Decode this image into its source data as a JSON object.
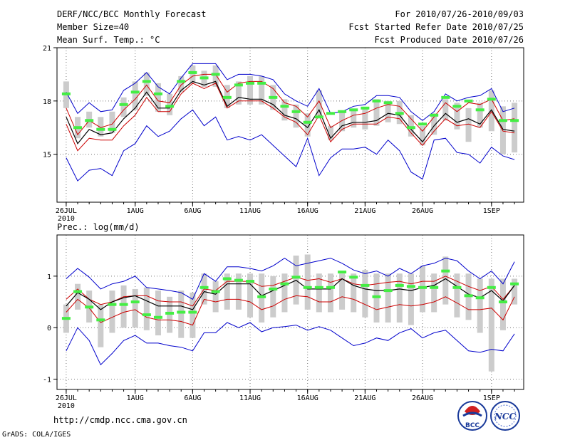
{
  "header": {
    "title": "DERF/NCC/BCC Monthly Forecast",
    "member_size": "Member Size=40",
    "variable": "Mean Surf. Temp.: °C",
    "period": "For 2010/07/26-2010/09/03",
    "started": "Fcst Started Refer Date 2010/07/25",
    "produced": "Fcst Produced Date 2010/07/26"
  },
  "footer": {
    "url": "http://cmdp.ncc.cma.gov.cn",
    "credit": "GrADS: COLA/IGES",
    "logo_bcc": "BCC",
    "logo_ncc": "NCC"
  },
  "chart_data": [
    {
      "type": "line",
      "title": "Mean Surf. Temp.: °C",
      "xlabel": "",
      "ylabel": "",
      "x_tick_labels": [
        "26JUL",
        "1AUG",
        "6AUG",
        "11AUG",
        "16AUG",
        "21AUG",
        "26AUG",
        "1SEP"
      ],
      "x_tick_days": [
        1,
        7,
        12,
        17,
        22,
        27,
        32,
        38
      ],
      "x_year_label": "2010",
      "xlim": [
        0.2,
        40.8
      ],
      "ylim": [
        12.3,
        21
      ],
      "y_ticks": [
        15,
        18,
        21
      ],
      "grid": true,
      "days": [
        1,
        2,
        3,
        4,
        5,
        6,
        7,
        8,
        9,
        10,
        11,
        12,
        13,
        14,
        15,
        16,
        17,
        18,
        19,
        20,
        21,
        22,
        23,
        24,
        25,
        26,
        27,
        28,
        29,
        30,
        31,
        32,
        33,
        34,
        35,
        36,
        37,
        38,
        39,
        40
      ],
      "series": [
        {
          "name": "max",
          "color": "#0000cc",
          "values": [
            18.5,
            17.3,
            17.9,
            17.4,
            17.5,
            18.6,
            19.0,
            19.6,
            18.8,
            18.4,
            19.3,
            20.1,
            20.1,
            20.1,
            19.2,
            19.5,
            19.5,
            19.4,
            19.2,
            18.4,
            18.0,
            17.7,
            18.7,
            17.3,
            17.4,
            17.7,
            17.8,
            18.3,
            18.3,
            18.2,
            17.4,
            16.9,
            17.4,
            18.4,
            18.0,
            18.2,
            18.3,
            18.7,
            17.4,
            17.6
          ]
        },
        {
          "name": "upper",
          "color": "#cc0000",
          "values": [
            17.6,
            16.1,
            16.9,
            16.5,
            16.7,
            17.5,
            18.1,
            18.9,
            18.0,
            17.9,
            18.9,
            19.4,
            19.5,
            19.5,
            18.5,
            19.0,
            19.1,
            19.1,
            18.7,
            17.9,
            17.7,
            17.1,
            18.0,
            16.5,
            16.9,
            17.2,
            17.3,
            17.6,
            17.8,
            17.7,
            17.0,
            16.3,
            17.1,
            17.9,
            17.4,
            17.9,
            17.8,
            18.1,
            16.9,
            17.0
          ]
        },
        {
          "name": "mean",
          "color": "#000000",
          "values": [
            17.1,
            15.6,
            16.4,
            16.1,
            16.2,
            17.0,
            17.6,
            18.5,
            17.6,
            17.6,
            18.6,
            19.1,
            18.9,
            19.1,
            17.7,
            18.2,
            18.1,
            18.1,
            17.8,
            17.2,
            17.0,
            16.5,
            17.5,
            15.9,
            16.6,
            16.8,
            16.8,
            16.9,
            17.3,
            17.2,
            16.4,
            15.7,
            16.6,
            17.3,
            16.8,
            17.0,
            16.7,
            17.5,
            16.4,
            16.3
          ]
        },
        {
          "name": "lower",
          "color": "#cc0000",
          "values": [
            16.7,
            15.2,
            15.9,
            15.8,
            15.8,
            16.6,
            17.2,
            18.2,
            17.4,
            17.4,
            18.4,
            19.0,
            18.7,
            19.0,
            17.6,
            18.0,
            18.0,
            18.0,
            17.6,
            17.1,
            16.8,
            16.1,
            17.2,
            15.7,
            16.4,
            16.7,
            16.7,
            16.7,
            17.1,
            17.0,
            16.2,
            15.5,
            16.3,
            17.0,
            16.6,
            16.7,
            16.5,
            17.4,
            16.3,
            16.2
          ]
        },
        {
          "name": "min",
          "color": "#0000cc",
          "values": [
            14.8,
            13.5,
            14.1,
            14.2,
            13.8,
            15.2,
            15.6,
            16.6,
            16.0,
            16.3,
            17.0,
            17.5,
            16.6,
            17.1,
            15.8,
            16.0,
            15.8,
            16.1,
            15.5,
            14.9,
            14.3,
            15.9,
            13.8,
            14.8,
            15.3,
            15.3,
            15.4,
            15.0,
            15.8,
            15.2,
            14.0,
            13.6,
            15.8,
            15.9,
            15.1,
            15.0,
            14.5,
            15.4,
            14.9,
            14.7
          ]
        }
      ],
      "spread_bars": {
        "color": "#cccccc",
        "low": [
          17.6,
          15.9,
          16.5,
          16.0,
          16.2,
          17.1,
          17.5,
          18.3,
          17.4,
          17.2,
          18.5,
          19.0,
          18.8,
          18.8,
          17.6,
          17.8,
          17.8,
          17.8,
          17.5,
          16.9,
          16.5,
          16.0,
          17.2,
          15.8,
          16.3,
          16.5,
          16.4,
          16.6,
          16.8,
          16.7,
          16.0,
          15.5,
          16.1,
          16.9,
          16.4,
          15.7,
          16.5,
          16.3,
          15.0,
          15.1
        ],
        "high": [
          19.1,
          17.1,
          17.4,
          17.1,
          17.4,
          18.2,
          19.1,
          19.6,
          19.0,
          18.4,
          19.4,
          20.0,
          19.7,
          20.0,
          18.9,
          19.1,
          19.4,
          19.4,
          18.9,
          18.1,
          17.8,
          17.3,
          18.6,
          16.6,
          17.4,
          17.5,
          17.6,
          18.1,
          18.0,
          18.0,
          17.2,
          16.6,
          17.3,
          18.1,
          17.9,
          17.6,
          17.9,
          18.6,
          17.7,
          17.9
        ]
      },
      "observed": {
        "color": "#44ee44",
        "values": [
          18.4,
          16.5,
          16.9,
          16.4,
          16.4,
          17.8,
          18.5,
          19.1,
          18.4,
          17.7,
          19.1,
          19.6,
          19.3,
          19.5,
          18.2,
          18.9,
          19.0,
          19.0,
          18.2,
          17.7,
          17.4,
          16.8,
          17.1,
          17.3,
          17.4,
          17.5,
          17.6,
          18.0,
          17.9,
          17.3,
          16.5,
          16.7,
          17.2,
          18.2,
          17.7,
          18.0,
          17.5,
          18.1,
          16.9,
          16.9
        ]
      }
    },
    {
      "type": "line",
      "title": "Prec.: log(mm/d)",
      "xlabel": "",
      "ylabel": "",
      "x_tick_labels": [
        "26JUL",
        "1AUG",
        "6AUG",
        "11AUG",
        "16AUG",
        "21AUG",
        "26AUG",
        "1SEP"
      ],
      "x_tick_days": [
        1,
        7,
        12,
        17,
        22,
        27,
        32,
        38
      ],
      "x_year_label": "2010",
      "xlim": [
        0.2,
        40.8
      ],
      "ylim": [
        -1.2,
        1.8
      ],
      "y_ticks": [
        -1,
        0,
        1
      ],
      "grid": true,
      "days": [
        1,
        2,
        3,
        4,
        5,
        6,
        7,
        8,
        9,
        10,
        11,
        12,
        13,
        14,
        15,
        16,
        17,
        18,
        19,
        20,
        21,
        22,
        23,
        24,
        25,
        26,
        27,
        28,
        29,
        30,
        31,
        32,
        33,
        34,
        35,
        36,
        37,
        38,
        39,
        40
      ],
      "series": [
        {
          "name": "max",
          "color": "#0000cc",
          "values": [
            0.95,
            1.15,
            0.98,
            0.75,
            0.85,
            0.9,
            1.0,
            0.78,
            0.75,
            0.72,
            0.68,
            0.55,
            1.05,
            0.9,
            1.18,
            1.18,
            1.15,
            1.1,
            1.2,
            1.35,
            1.2,
            1.25,
            1.3,
            1.35,
            1.25,
            1.12,
            1.05,
            1.1,
            1.0,
            1.15,
            1.05,
            1.2,
            1.25,
            1.35,
            1.3,
            1.1,
            0.95,
            1.1,
            0.85,
            1.28
          ]
        },
        {
          "name": "upper",
          "color": "#cc0000",
          "values": [
            0.55,
            0.75,
            0.55,
            0.45,
            0.5,
            0.6,
            0.62,
            0.62,
            0.52,
            0.5,
            0.5,
            0.42,
            0.75,
            0.72,
            0.9,
            0.9,
            0.9,
            0.8,
            0.82,
            0.9,
            0.98,
            0.92,
            0.95,
            0.88,
            0.95,
            0.85,
            0.82,
            0.85,
            0.88,
            0.9,
            0.85,
            0.9,
            0.9,
            1.0,
            0.9,
            0.8,
            0.72,
            0.8,
            0.55,
            0.82
          ]
        },
        {
          "name": "mean",
          "color": "#000000",
          "values": [
            0.42,
            0.68,
            0.55,
            0.35,
            0.5,
            0.58,
            0.62,
            0.52,
            0.42,
            0.42,
            0.42,
            0.35,
            0.7,
            0.65,
            0.85,
            0.85,
            0.85,
            0.62,
            0.72,
            0.82,
            0.92,
            0.75,
            0.75,
            0.75,
            0.95,
            0.82,
            0.75,
            0.72,
            0.72,
            0.75,
            0.72,
            0.78,
            0.82,
            0.95,
            0.8,
            0.65,
            0.58,
            0.72,
            0.52,
            0.82
          ]
        },
        {
          "name": "lower",
          "color": "#cc0000",
          "values": [
            0.3,
            0.55,
            0.38,
            0.1,
            0.2,
            0.3,
            0.35,
            0.2,
            0.15,
            0.15,
            0.12,
            0.05,
            0.55,
            0.5,
            0.55,
            0.55,
            0.5,
            0.35,
            0.42,
            0.55,
            0.62,
            0.6,
            0.5,
            0.5,
            0.6,
            0.55,
            0.45,
            0.35,
            0.4,
            0.45,
            0.42,
            0.45,
            0.5,
            0.6,
            0.48,
            0.35,
            0.35,
            0.38,
            0.15,
            0.6
          ]
        },
        {
          "name": "min",
          "color": "#0000cc",
          "values": [
            -0.45,
            0.0,
            -0.25,
            -0.72,
            -0.5,
            -0.25,
            -0.15,
            -0.3,
            -0.3,
            -0.35,
            -0.38,
            -0.45,
            -0.1,
            -0.1,
            0.1,
            0.0,
            0.1,
            -0.08,
            0.0,
            0.02,
            0.05,
            -0.05,
            0.02,
            -0.05,
            -0.2,
            -0.35,
            -0.3,
            -0.2,
            -0.25,
            -0.1,
            -0.02,
            -0.2,
            -0.1,
            -0.05,
            -0.25,
            -0.45,
            -0.48,
            -0.42,
            -0.45,
            -0.12
          ]
        }
      ],
      "spread_bars": {
        "color": "#cccccc",
        "low": [
          -0.1,
          0.35,
          0.1,
          -0.38,
          -0.1,
          0.0,
          0.0,
          -0.05,
          -0.15,
          -0.1,
          -0.2,
          -0.2,
          0.45,
          0.3,
          0.35,
          0.35,
          0.2,
          0.1,
          0.2,
          0.3,
          0.45,
          0.35,
          0.3,
          0.3,
          0.35,
          0.3,
          0.2,
          0.1,
          0.1,
          0.1,
          0.05,
          0.3,
          0.3,
          0.45,
          0.2,
          0.15,
          -0.1,
          -0.85,
          -0.05,
          0.45
        ],
        "high": [
          0.45,
          0.85,
          0.72,
          0.45,
          0.72,
          0.82,
          0.75,
          0.78,
          0.72,
          0.6,
          0.72,
          0.68,
          1.05,
          0.9,
          1.05,
          1.05,
          1.05,
          1.05,
          1.0,
          1.05,
          1.4,
          1.42,
          1.05,
          1.05,
          1.05,
          1.05,
          1.12,
          1.05,
          1.05,
          1.05,
          1.05,
          1.2,
          1.05,
          1.38,
          1.05,
          1.05,
          0.95,
          0.95,
          0.95,
          0.95
        ]
      },
      "observed": {
        "color": "#44ee44",
        "values": [
          0.18,
          0.7,
          0.4,
          0.15,
          0.45,
          0.45,
          0.5,
          0.25,
          0.2,
          0.28,
          0.3,
          0.3,
          0.78,
          0.7,
          0.95,
          0.92,
          0.9,
          0.6,
          0.75,
          0.85,
          0.98,
          0.78,
          0.78,
          0.78,
          1.08,
          0.98,
          0.82,
          0.6,
          0.72,
          0.82,
          0.8,
          0.78,
          0.78,
          1.1,
          0.78,
          0.62,
          0.58,
          0.78,
          0.5,
          0.85
        ]
      }
    }
  ]
}
